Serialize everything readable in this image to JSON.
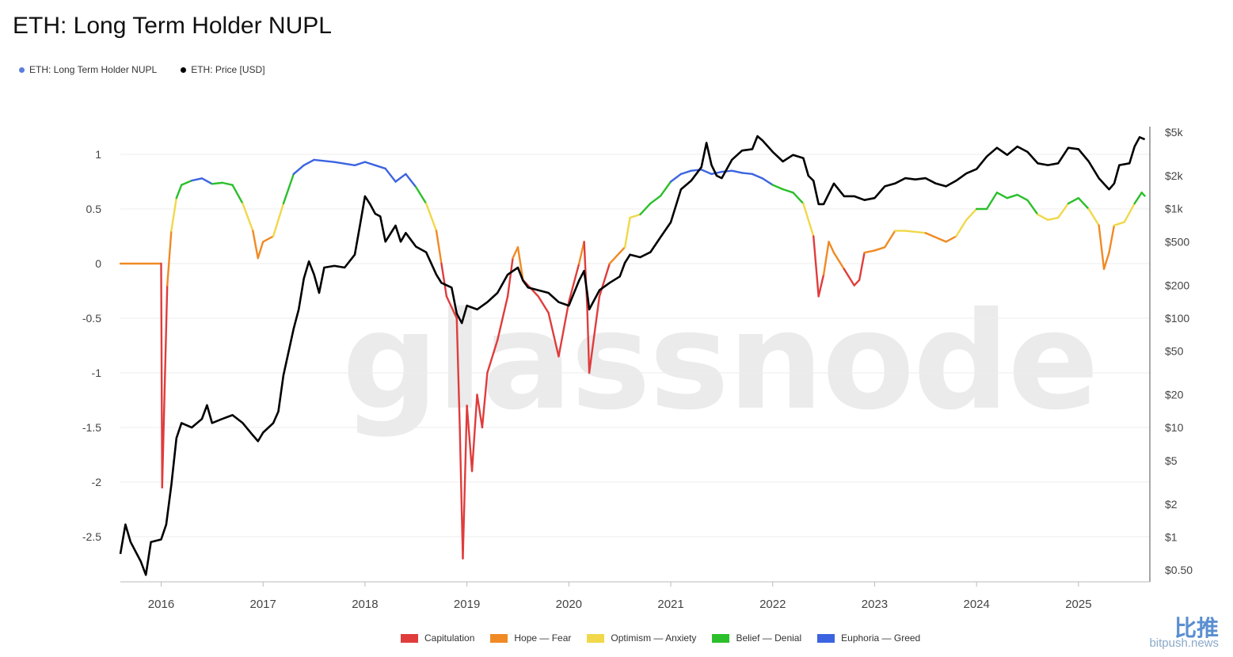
{
  "title": "ETH: Long Term Holder NUPL",
  "legend_top": [
    {
      "label": "ETH: Long Term Holder NUPL",
      "color": "#5b7ddb"
    },
    {
      "label": "ETH: Price [USD]",
      "color": "#000000"
    }
  ],
  "legend_bottom": [
    {
      "label": "Capitulation",
      "color": "#e03c3c"
    },
    {
      "label": "Hope — Fear",
      "color": "#f08a24"
    },
    {
      "label": "Optimism — Anxiety",
      "color": "#f0d84a"
    },
    {
      "label": "Belief — Denial",
      "color": "#2bbf2b"
    },
    {
      "label": "Euphoria — Greed",
      "color": "#3c64e0"
    }
  ],
  "watermark": "glassnode",
  "brand": {
    "cn": "比推",
    "domain": "bitpush.news"
  },
  "chart_data": {
    "type": "line",
    "left_axis": {
      "ticks": [
        1,
        0.5,
        0,
        -0.5,
        -1,
        -1.5,
        -2,
        -2.5
      ],
      "tick_labels": [
        "1",
        "0.5",
        "0",
        "-0.5",
        "-1",
        "-1.5",
        "-2",
        "-2.5"
      ],
      "range": [
        -2.9,
        1.2
      ]
    },
    "right_axis": {
      "scale": "log",
      "ticks": [
        5000,
        2000,
        1000,
        500,
        200,
        100,
        50,
        20,
        10,
        5,
        2,
        1,
        0.5
      ],
      "tick_labels": [
        "$5k",
        "$2k",
        "$1k",
        "$500",
        "$200",
        "$100",
        "$50",
        "$20",
        "$10",
        "$5",
        "$2",
        "$1",
        "$0.50"
      ]
    },
    "x_axis": {
      "tick_labels": [
        "2016",
        "2017",
        "2018",
        "2019",
        "2020",
        "2021",
        "2022",
        "2023",
        "2024",
        "2025"
      ],
      "range": [
        2015.6,
        2025.7
      ]
    },
    "series": [
      {
        "name": "ETH: Long Term Holder NUPL",
        "colors": {
          "capitulation": "#e03c3c",
          "hope": "#f08a24",
          "optimism": "#f0d84a",
          "belief": "#2bbf2b",
          "euphoria": "#3c64e0"
        },
        "points": [
          [
            2015.6,
            0.0
          ],
          [
            2016.0,
            0.0
          ],
          [
            2016.01,
            -2.05
          ],
          [
            2016.06,
            -0.2
          ],
          [
            2016.1,
            0.3
          ],
          [
            2016.15,
            0.6
          ],
          [
            2016.2,
            0.72
          ],
          [
            2016.3,
            0.76
          ],
          [
            2016.4,
            0.78
          ],
          [
            2016.5,
            0.73
          ],
          [
            2016.6,
            0.74
          ],
          [
            2016.7,
            0.72
          ],
          [
            2016.8,
            0.55
          ],
          [
            2016.9,
            0.3
          ],
          [
            2016.95,
            0.05
          ],
          [
            2017.0,
            0.2
          ],
          [
            2017.1,
            0.25
          ],
          [
            2017.2,
            0.55
          ],
          [
            2017.3,
            0.82
          ],
          [
            2017.4,
            0.9
          ],
          [
            2017.5,
            0.95
          ],
          [
            2017.7,
            0.93
          ],
          [
            2017.9,
            0.9
          ],
          [
            2018.0,
            0.93
          ],
          [
            2018.1,
            0.9
          ],
          [
            2018.2,
            0.87
          ],
          [
            2018.3,
            0.75
          ],
          [
            2018.4,
            0.82
          ],
          [
            2018.5,
            0.7
          ],
          [
            2018.6,
            0.55
          ],
          [
            2018.7,
            0.3
          ],
          [
            2018.75,
            0.0
          ],
          [
            2018.8,
            -0.3
          ],
          [
            2018.9,
            -0.5
          ],
          [
            2018.93,
            -1.5
          ],
          [
            2018.96,
            -2.7
          ],
          [
            2019.0,
            -1.3
          ],
          [
            2019.05,
            -1.9
          ],
          [
            2019.1,
            -1.2
          ],
          [
            2019.15,
            -1.5
          ],
          [
            2019.2,
            -1.0
          ],
          [
            2019.3,
            -0.7
          ],
          [
            2019.4,
            -0.3
          ],
          [
            2019.45,
            0.05
          ],
          [
            2019.5,
            0.15
          ],
          [
            2019.55,
            -0.15
          ],
          [
            2019.7,
            -0.3
          ],
          [
            2019.8,
            -0.45
          ],
          [
            2019.9,
            -0.85
          ],
          [
            2020.0,
            -0.35
          ],
          [
            2020.1,
            0.0
          ],
          [
            2020.15,
            0.2
          ],
          [
            2020.18,
            -0.4
          ],
          [
            2020.2,
            -1.0
          ],
          [
            2020.3,
            -0.3
          ],
          [
            2020.4,
            0.0
          ],
          [
            2020.5,
            0.1
          ],
          [
            2020.55,
            0.15
          ],
          [
            2020.6,
            0.42
          ],
          [
            2020.7,
            0.45
          ],
          [
            2020.8,
            0.55
          ],
          [
            2020.9,
            0.62
          ],
          [
            2021.0,
            0.75
          ],
          [
            2021.1,
            0.82
          ],
          [
            2021.2,
            0.85
          ],
          [
            2021.3,
            0.86
          ],
          [
            2021.4,
            0.82
          ],
          [
            2021.5,
            0.84
          ],
          [
            2021.6,
            0.85
          ],
          [
            2021.7,
            0.83
          ],
          [
            2021.8,
            0.82
          ],
          [
            2021.9,
            0.78
          ],
          [
            2022.0,
            0.72
          ],
          [
            2022.1,
            0.68
          ],
          [
            2022.2,
            0.65
          ],
          [
            2022.3,
            0.55
          ],
          [
            2022.4,
            0.25
          ],
          [
            2022.45,
            -0.3
          ],
          [
            2022.5,
            -0.1
          ],
          [
            2022.55,
            0.2
          ],
          [
            2022.6,
            0.1
          ],
          [
            2022.7,
            -0.05
          ],
          [
            2022.8,
            -0.2
          ],
          [
            2022.85,
            -0.15
          ],
          [
            2022.9,
            0.1
          ],
          [
            2023.0,
            0.12
          ],
          [
            2023.1,
            0.15
          ],
          [
            2023.2,
            0.3
          ],
          [
            2023.3,
            0.3
          ],
          [
            2023.5,
            0.28
          ],
          [
            2023.7,
            0.2
          ],
          [
            2023.8,
            0.25
          ],
          [
            2023.9,
            0.4
          ],
          [
            2024.0,
            0.5
          ],
          [
            2024.1,
            0.5
          ],
          [
            2024.2,
            0.65
          ],
          [
            2024.3,
            0.6
          ],
          [
            2024.4,
            0.63
          ],
          [
            2024.5,
            0.58
          ],
          [
            2024.6,
            0.45
          ],
          [
            2024.7,
            0.4
          ],
          [
            2024.8,
            0.42
          ],
          [
            2024.9,
            0.55
          ],
          [
            2025.0,
            0.6
          ],
          [
            2025.1,
            0.5
          ],
          [
            2025.2,
            0.35
          ],
          [
            2025.25,
            -0.05
          ],
          [
            2025.3,
            0.1
          ],
          [
            2025.35,
            0.35
          ],
          [
            2025.45,
            0.38
          ],
          [
            2025.55,
            0.55
          ],
          [
            2025.62,
            0.65
          ],
          [
            2025.65,
            0.62
          ]
        ]
      },
      {
        "name": "ETH: Price [USD]",
        "color": "#000000",
        "points": [
          [
            2015.6,
            0.7
          ],
          [
            2015.65,
            1.3
          ],
          [
            2015.7,
            0.9
          ],
          [
            2015.8,
            0.6
          ],
          [
            2015.85,
            0.45
          ],
          [
            2015.9,
            0.9
          ],
          [
            2016.0,
            0.95
          ],
          [
            2016.05,
            1.3
          ],
          [
            2016.1,
            3.0
          ],
          [
            2016.15,
            8.0
          ],
          [
            2016.2,
            11.0
          ],
          [
            2016.3,
            10.0
          ],
          [
            2016.4,
            12.0
          ],
          [
            2016.45,
            16.0
          ],
          [
            2016.5,
            11.0
          ],
          [
            2016.6,
            12.0
          ],
          [
            2016.7,
            13.0
          ],
          [
            2016.8,
            11.0
          ],
          [
            2016.9,
            8.5
          ],
          [
            2016.95,
            7.5
          ],
          [
            2017.0,
            9.0
          ],
          [
            2017.1,
            11.0
          ],
          [
            2017.15,
            14.0
          ],
          [
            2017.2,
            30.0
          ],
          [
            2017.3,
            80.0
          ],
          [
            2017.35,
            120.0
          ],
          [
            2017.4,
            230.0
          ],
          [
            2017.45,
            330.0
          ],
          [
            2017.5,
            250.0
          ],
          [
            2017.55,
            170.0
          ],
          [
            2017.6,
            290.0
          ],
          [
            2017.7,
            300.0
          ],
          [
            2017.8,
            290.0
          ],
          [
            2017.9,
            380.0
          ],
          [
            2017.95,
            700.0
          ],
          [
            2018.0,
            1300.0
          ],
          [
            2018.05,
            1100.0
          ],
          [
            2018.1,
            900.0
          ],
          [
            2018.15,
            850.0
          ],
          [
            2018.2,
            500.0
          ],
          [
            2018.3,
            700.0
          ],
          [
            2018.35,
            500.0
          ],
          [
            2018.4,
            600.0
          ],
          [
            2018.5,
            450.0
          ],
          [
            2018.6,
            400.0
          ],
          [
            2018.7,
            250.0
          ],
          [
            2018.75,
            210.0
          ],
          [
            2018.8,
            200.0
          ],
          [
            2018.85,
            190.0
          ],
          [
            2018.9,
            110.0
          ],
          [
            2018.95,
            90.0
          ],
          [
            2019.0,
            130.0
          ],
          [
            2019.1,
            120.0
          ],
          [
            2019.2,
            140.0
          ],
          [
            2019.3,
            170.0
          ],
          [
            2019.4,
            250.0
          ],
          [
            2019.5,
            290.0
          ],
          [
            2019.55,
            220.0
          ],
          [
            2019.6,
            190.0
          ],
          [
            2019.7,
            180.0
          ],
          [
            2019.8,
            170.0
          ],
          [
            2019.9,
            140.0
          ],
          [
            2020.0,
            130.0
          ],
          [
            2020.1,
            220.0
          ],
          [
            2020.15,
            270.0
          ],
          [
            2020.18,
            170.0
          ],
          [
            2020.2,
            120.0
          ],
          [
            2020.3,
            180.0
          ],
          [
            2020.4,
            210.0
          ],
          [
            2020.5,
            240.0
          ],
          [
            2020.55,
            320.0
          ],
          [
            2020.6,
            380.0
          ],
          [
            2020.7,
            360.0
          ],
          [
            2020.8,
            400.0
          ],
          [
            2020.9,
            550.0
          ],
          [
            2021.0,
            750.0
          ],
          [
            2021.1,
            1500.0
          ],
          [
            2021.2,
            1800.0
          ],
          [
            2021.3,
            2400.0
          ],
          [
            2021.35,
            4000.0
          ],
          [
            2021.4,
            2500.0
          ],
          [
            2021.45,
            2000.0
          ],
          [
            2021.5,
            1900.0
          ],
          [
            2021.6,
            2800.0
          ],
          [
            2021.7,
            3400.0
          ],
          [
            2021.8,
            3500.0
          ],
          [
            2021.85,
            4600.0
          ],
          [
            2021.9,
            4200.0
          ],
          [
            2022.0,
            3300.0
          ],
          [
            2022.1,
            2700.0
          ],
          [
            2022.2,
            3100.0
          ],
          [
            2022.3,
            2900.0
          ],
          [
            2022.35,
            2000.0
          ],
          [
            2022.4,
            1800.0
          ],
          [
            2022.45,
            1100.0
          ],
          [
            2022.5,
            1100.0
          ],
          [
            2022.6,
            1700.0
          ],
          [
            2022.7,
            1300.0
          ],
          [
            2022.8,
            1300.0
          ],
          [
            2022.9,
            1200.0
          ],
          [
            2023.0,
            1250.0
          ],
          [
            2023.1,
            1600.0
          ],
          [
            2023.2,
            1700.0
          ],
          [
            2023.3,
            1900.0
          ],
          [
            2023.4,
            1850.0
          ],
          [
            2023.5,
            1900.0
          ],
          [
            2023.6,
            1700.0
          ],
          [
            2023.7,
            1600.0
          ],
          [
            2023.8,
            1800.0
          ],
          [
            2023.9,
            2100.0
          ],
          [
            2024.0,
            2300.0
          ],
          [
            2024.1,
            3000.0
          ],
          [
            2024.2,
            3600.0
          ],
          [
            2024.3,
            3100.0
          ],
          [
            2024.4,
            3700.0
          ],
          [
            2024.5,
            3300.0
          ],
          [
            2024.6,
            2600.0
          ],
          [
            2024.7,
            2500.0
          ],
          [
            2024.8,
            2600.0
          ],
          [
            2024.9,
            3600.0
          ],
          [
            2025.0,
            3500.0
          ],
          [
            2025.1,
            2700.0
          ],
          [
            2025.2,
            1900.0
          ],
          [
            2025.3,
            1500.0
          ],
          [
            2025.35,
            1700.0
          ],
          [
            2025.4,
            2500.0
          ],
          [
            2025.5,
            2600.0
          ],
          [
            2025.55,
            3700.0
          ],
          [
            2025.6,
            4500.0
          ],
          [
            2025.65,
            4300.0
          ]
        ]
      }
    ],
    "zones": [
      {
        "name": "Capitulation",
        "below": 0
      },
      {
        "name": "Hope — Fear",
        "from": 0,
        "to": 0.25
      },
      {
        "name": "Optimism — Anxiety",
        "from": 0.25,
        "to": 0.5
      },
      {
        "name": "Belief — Denial",
        "from": 0.5,
        "to": 0.75
      },
      {
        "name": "Euphoria — Greed",
        "above": 0.75
      }
    ],
    "grid": true,
    "legend_position": "top-left"
  }
}
